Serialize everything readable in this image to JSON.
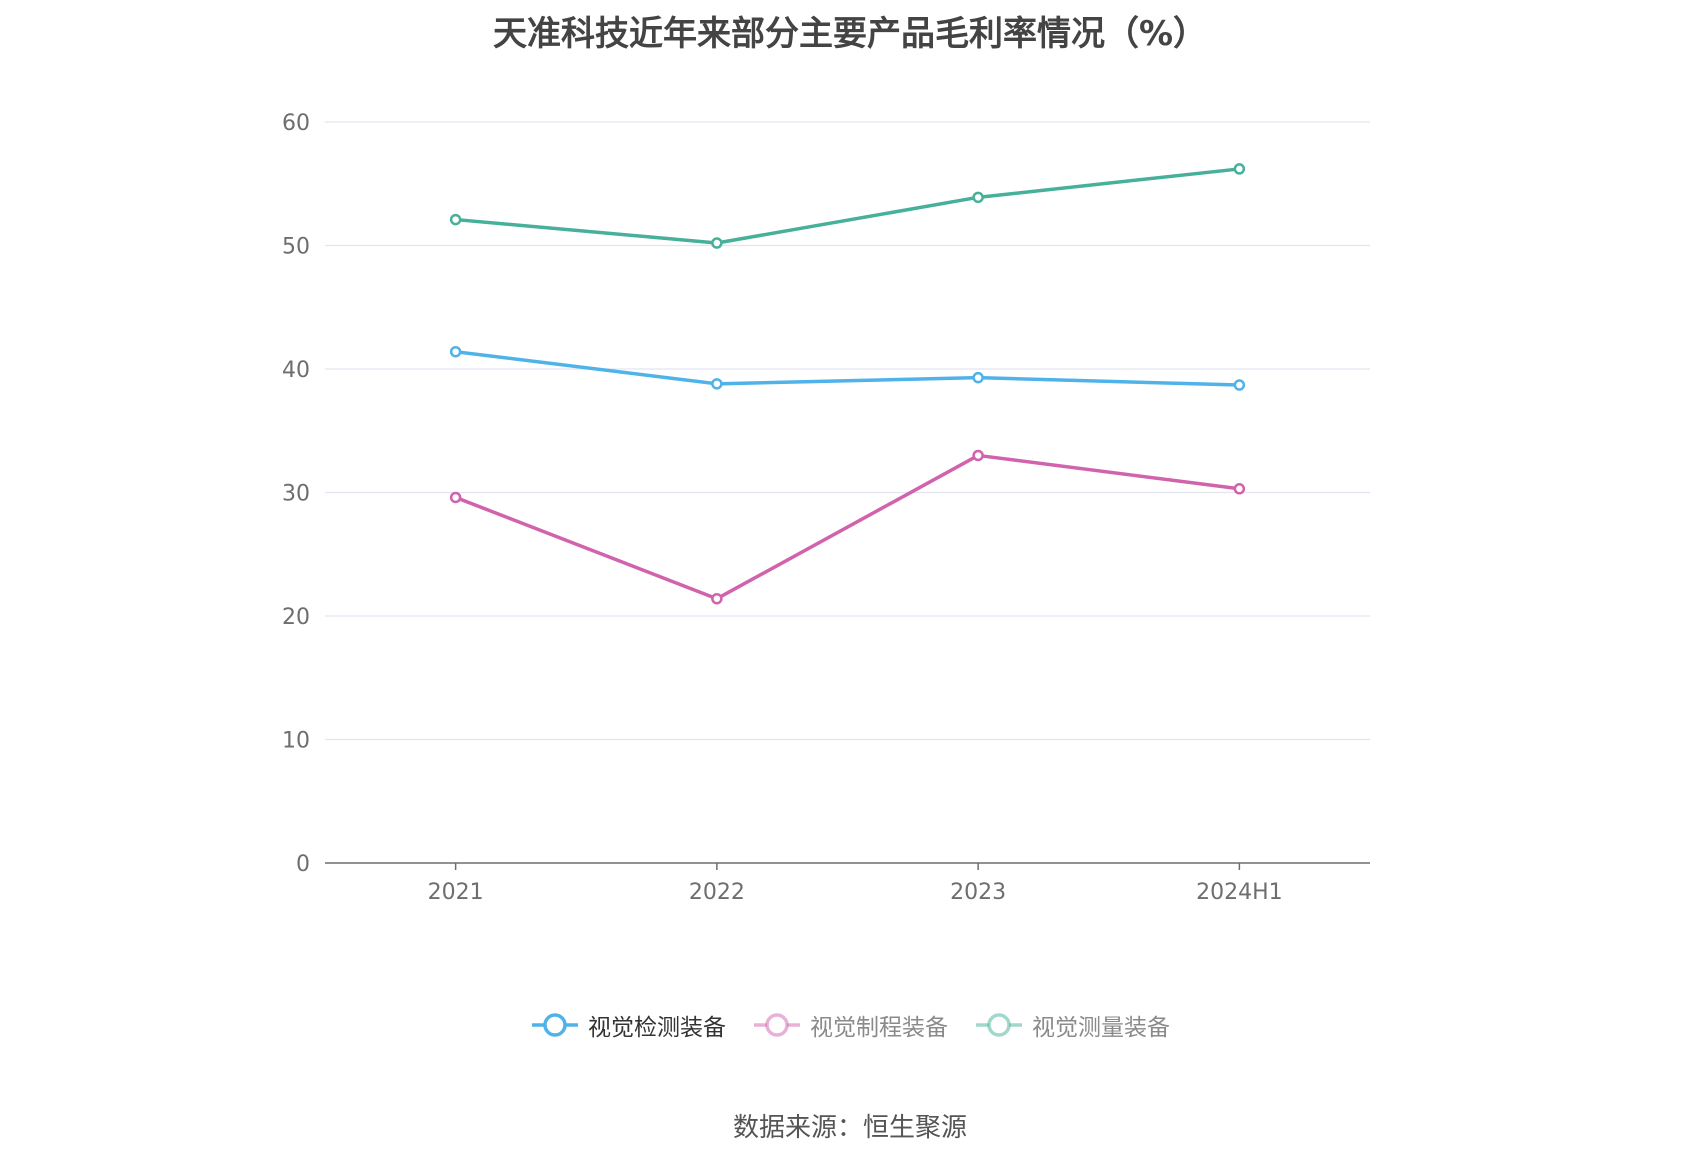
{
  "chart_data": {
    "type": "line",
    "title": "天准科技近年来部分主要产品毛利率情况（%）",
    "categories": [
      "2021",
      "2022",
      "2023",
      "2024H1"
    ],
    "ylim": [
      0,
      60
    ],
    "yticks": [
      0,
      10,
      20,
      30,
      40,
      50,
      60
    ],
    "grid": true,
    "legend_position": "bottom",
    "series": [
      {
        "name": "视觉检测装备",
        "values": [
          41.4,
          38.8,
          39.3,
          38.7
        ],
        "color": "#4fb3ea",
        "legend_active": true
      },
      {
        "name": "视觉制程装备",
        "values": [
          29.6,
          21.4,
          33.0,
          30.3
        ],
        "color": "#d163ad",
        "legend_active": false
      },
      {
        "name": "视觉测量装备",
        "values": [
          52.1,
          50.2,
          53.9,
          56.2
        ],
        "color": "#46b09a",
        "legend_active": false
      }
    ],
    "source": "数据来源：恒生聚源"
  }
}
